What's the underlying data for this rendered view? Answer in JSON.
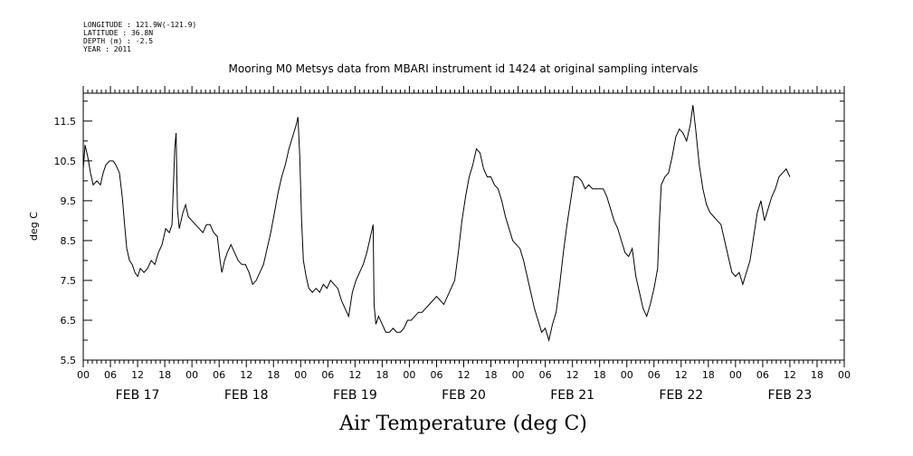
{
  "header": {
    "longitude": "LONGITUDE : 121.9W(-121.9)",
    "latitude": "LATITUDE : 36.8N",
    "depth": "DEPTH (m) : -2.5",
    "year": "YEAR : 2011"
  },
  "chart_data": {
    "type": "line",
    "title": "Mooring M0 Metsys data from MBARI instrument id 1424 at original sampling intervals",
    "xlabel": "Air Temperature (deg C)",
    "ylabel": "deg C",
    "ylim": [
      5.5,
      12.2
    ],
    "yticks": [
      "5.5",
      "6.5",
      "7.5",
      "8.5",
      "9.5",
      "10.5",
      "11.5"
    ],
    "xlim_hours": [
      0,
      168
    ],
    "hour_tick_labels": [
      "00",
      "06",
      "12",
      "18"
    ],
    "final_tick_label": "00",
    "days": [
      "FEB 17",
      "FEB 18",
      "FEB 19",
      "FEB 20",
      "FEB 21",
      "FEB 22",
      "FEB 23"
    ],
    "grid": false,
    "series": [
      {
        "color": "#000000",
        "points": [
          [
            0,
            10.3
          ],
          [
            0.4,
            10.9
          ],
          [
            1,
            10.6
          ],
          [
            1.6,
            10.2
          ],
          [
            2.2,
            9.9
          ],
          [
            3,
            10.0
          ],
          [
            3.8,
            9.9
          ],
          [
            4.4,
            10.2
          ],
          [
            5,
            10.4
          ],
          [
            5.8,
            10.5
          ],
          [
            6.6,
            10.5
          ],
          [
            7.2,
            10.4
          ],
          [
            8,
            10.2
          ],
          [
            8.6,
            9.6
          ],
          [
            9.2,
            8.8
          ],
          [
            9.6,
            8.3
          ],
          [
            10.2,
            8.0
          ],
          [
            10.8,
            7.9
          ],
          [
            11.4,
            7.7
          ],
          [
            12,
            7.6
          ],
          [
            12.6,
            7.8
          ],
          [
            13.4,
            7.7
          ],
          [
            14.2,
            7.8
          ],
          [
            15,
            8.0
          ],
          [
            15.8,
            7.9
          ],
          [
            16.6,
            8.2
          ],
          [
            17.4,
            8.4
          ],
          [
            18.2,
            8.8
          ],
          [
            19,
            8.7
          ],
          [
            19.6,
            8.9
          ],
          [
            20.2,
            10.8
          ],
          [
            20.5,
            11.2
          ],
          [
            20.8,
            9.3
          ],
          [
            21.2,
            8.8
          ],
          [
            22,
            9.2
          ],
          [
            22.6,
            9.4
          ],
          [
            23.2,
            9.1
          ],
          [
            24,
            9.0
          ],
          [
            24.8,
            8.9
          ],
          [
            25.6,
            8.8
          ],
          [
            26.4,
            8.7
          ],
          [
            27.2,
            8.9
          ],
          [
            28,
            8.9
          ],
          [
            28.8,
            8.7
          ],
          [
            29.6,
            8.6
          ],
          [
            30.2,
            8.0
          ],
          [
            30.6,
            7.7
          ],
          [
            31.2,
            8.0
          ],
          [
            31.8,
            8.2
          ],
          [
            32.6,
            8.4
          ],
          [
            33.4,
            8.2
          ],
          [
            34.2,
            8.0
          ],
          [
            35,
            7.9
          ],
          [
            35.8,
            7.9
          ],
          [
            36.6,
            7.7
          ],
          [
            37.4,
            7.4
          ],
          [
            38.2,
            7.5
          ],
          [
            39,
            7.7
          ],
          [
            39.8,
            7.9
          ],
          [
            40.6,
            8.3
          ],
          [
            41.4,
            8.7
          ],
          [
            42.2,
            9.2
          ],
          [
            43,
            9.7
          ],
          [
            43.8,
            10.1
          ],
          [
            44.6,
            10.4
          ],
          [
            45.4,
            10.8
          ],
          [
            46.2,
            11.1
          ],
          [
            47,
            11.4
          ],
          [
            47.4,
            11.6
          ],
          [
            47.8,
            10.6
          ],
          [
            48.2,
            9.0
          ],
          [
            48.6,
            8.0
          ],
          [
            49.2,
            7.6
          ],
          [
            49.8,
            7.3
          ],
          [
            50.6,
            7.2
          ],
          [
            51.4,
            7.3
          ],
          [
            52.2,
            7.2
          ],
          [
            53,
            7.4
          ],
          [
            53.8,
            7.3
          ],
          [
            54.6,
            7.5
          ],
          [
            55.4,
            7.4
          ],
          [
            56.2,
            7.3
          ],
          [
            57,
            7.0
          ],
          [
            57.8,
            6.8
          ],
          [
            58.6,
            6.6
          ],
          [
            59.4,
            7.2
          ],
          [
            60.2,
            7.5
          ],
          [
            61,
            7.7
          ],
          [
            61.8,
            7.9
          ],
          [
            62.6,
            8.2
          ],
          [
            63.4,
            8.6
          ],
          [
            64,
            8.9
          ],
          [
            64.2,
            6.9
          ],
          [
            64.6,
            6.4
          ],
          [
            65.2,
            6.6
          ],
          [
            66,
            6.4
          ],
          [
            66.8,
            6.2
          ],
          [
            67.6,
            6.2
          ],
          [
            68.4,
            6.3
          ],
          [
            69.2,
            6.2
          ],
          [
            70,
            6.2
          ],
          [
            70.8,
            6.3
          ],
          [
            71.6,
            6.5
          ],
          [
            72.4,
            6.5
          ],
          [
            73.2,
            6.6
          ],
          [
            74,
            6.7
          ],
          [
            74.8,
            6.7
          ],
          [
            75.6,
            6.8
          ],
          [
            76.4,
            6.9
          ],
          [
            77.2,
            7.0
          ],
          [
            78,
            7.1
          ],
          [
            78.8,
            7.0
          ],
          [
            79.6,
            6.9
          ],
          [
            80.4,
            7.1
          ],
          [
            81.2,
            7.3
          ],
          [
            82,
            7.5
          ],
          [
            82.8,
            8.2
          ],
          [
            83.6,
            9.0
          ],
          [
            84.4,
            9.6
          ],
          [
            85.2,
            10.1
          ],
          [
            86,
            10.4
          ],
          [
            86.8,
            10.8
          ],
          [
            87.6,
            10.7
          ],
          [
            88.4,
            10.3
          ],
          [
            89.2,
            10.1
          ],
          [
            90,
            10.1
          ],
          [
            90.8,
            9.9
          ],
          [
            91.6,
            9.8
          ],
          [
            92.4,
            9.5
          ],
          [
            93.2,
            9.1
          ],
          [
            94,
            8.8
          ],
          [
            94.8,
            8.5
          ],
          [
            95.6,
            8.4
          ],
          [
            96.4,
            8.3
          ],
          [
            97.2,
            8.0
          ],
          [
            98,
            7.6
          ],
          [
            98.8,
            7.2
          ],
          [
            99.6,
            6.8
          ],
          [
            100.4,
            6.5
          ],
          [
            101.2,
            6.2
          ],
          [
            102,
            6.3
          ],
          [
            102.8,
            6.0
          ],
          [
            103.6,
            6.4
          ],
          [
            104.4,
            6.7
          ],
          [
            105.2,
            7.4
          ],
          [
            106,
            8.2
          ],
          [
            106.8,
            8.9
          ],
          [
            107.6,
            9.5
          ],
          [
            108.4,
            10.1
          ],
          [
            109.2,
            10.1
          ],
          [
            110,
            10.0
          ],
          [
            110.8,
            9.8
          ],
          [
            111.6,
            9.9
          ],
          [
            112.4,
            9.8
          ],
          [
            113.2,
            9.8
          ],
          [
            114,
            9.8
          ],
          [
            114.8,
            9.8
          ],
          [
            115.6,
            9.6
          ],
          [
            116.4,
            9.3
          ],
          [
            117.2,
            9.0
          ],
          [
            118,
            8.8
          ],
          [
            118.8,
            8.5
          ],
          [
            119.6,
            8.2
          ],
          [
            120.4,
            8.1
          ],
          [
            121.2,
            8.3
          ],
          [
            122,
            7.6
          ],
          [
            122.8,
            7.2
          ],
          [
            123.6,
            6.8
          ],
          [
            124.4,
            6.6
          ],
          [
            125.2,
            6.9
          ],
          [
            126,
            7.3
          ],
          [
            126.8,
            7.8
          ],
          [
            127.2,
            9.0
          ],
          [
            127.6,
            9.9
          ],
          [
            128.4,
            10.1
          ],
          [
            129.2,
            10.2
          ],
          [
            130,
            10.6
          ],
          [
            130.8,
            11.1
          ],
          [
            131.6,
            11.3
          ],
          [
            132.4,
            11.2
          ],
          [
            133.2,
            11.0
          ],
          [
            134,
            11.4
          ],
          [
            134.6,
            11.9
          ],
          [
            135.2,
            11.3
          ],
          [
            136,
            10.4
          ],
          [
            136.8,
            9.8
          ],
          [
            137.6,
            9.4
          ],
          [
            138.4,
            9.2
          ],
          [
            139.2,
            9.1
          ],
          [
            140,
            9.0
          ],
          [
            140.8,
            8.9
          ],
          [
            141.6,
            8.5
          ],
          [
            142.4,
            8.1
          ],
          [
            143.2,
            7.7
          ],
          [
            144,
            7.6
          ],
          [
            144.8,
            7.7
          ],
          [
            145.6,
            7.4
          ],
          [
            146.4,
            7.7
          ],
          [
            147.2,
            8.0
          ],
          [
            148,
            8.6
          ],
          [
            148.8,
            9.2
          ],
          [
            149.6,
            9.5
          ],
          [
            150.4,
            9.0
          ],
          [
            151.2,
            9.3
          ],
          [
            152,
            9.6
          ],
          [
            152.8,
            9.8
          ],
          [
            153.6,
            10.1
          ],
          [
            154.4,
            10.2
          ],
          [
            155.2,
            10.3
          ],
          [
            156,
            10.1
          ]
        ]
      }
    ]
  }
}
